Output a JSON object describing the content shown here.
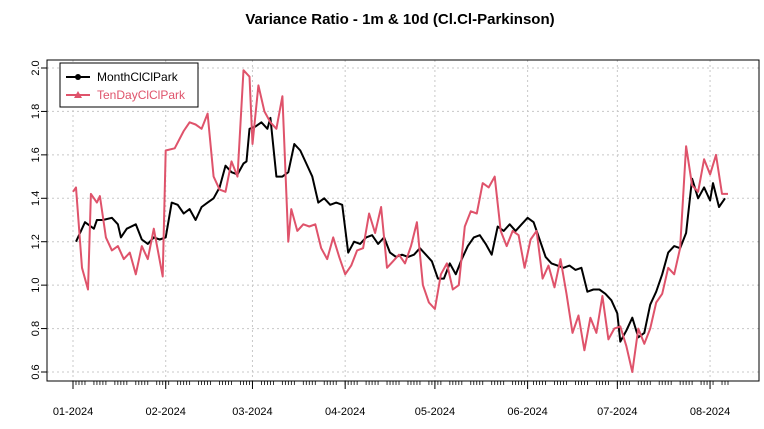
{
  "chart_data": {
    "type": "line",
    "title": "Variance Ratio - 1m & 10d (Cl.Cl-Parkinson)",
    "xlabel": "",
    "ylabel": "",
    "ylim": [
      0.6,
      2.0
    ],
    "y_ticks": [
      "0.6",
      "0.8",
      "1.0",
      "1.2",
      "1.4",
      "1.6",
      "1.8",
      "2.0"
    ],
    "x_tick_labels": [
      "01-2024",
      "02-2024",
      "03-2024",
      "04-2024",
      "05-2024",
      "06-2024",
      "07-2024",
      "08-2024"
    ],
    "grid": true,
    "legend_position": "top-left",
    "series": [
      {
        "name": "MonthClClPark",
        "color": "#000000",
        "points": [
          [
            "2024-01-02",
            1.2
          ],
          [
            "2024-01-04",
            1.26
          ],
          [
            "2024-01-05",
            1.29
          ],
          [
            "2024-01-08",
            1.26
          ],
          [
            "2024-01-09",
            1.3
          ],
          [
            "2024-01-11",
            1.3
          ],
          [
            "2024-01-14",
            1.31
          ],
          [
            "2024-01-16",
            1.28
          ],
          [
            "2024-01-17",
            1.22
          ],
          [
            "2024-01-19",
            1.26
          ],
          [
            "2024-01-22",
            1.28
          ],
          [
            "2024-01-24",
            1.21
          ],
          [
            "2024-01-26",
            1.19
          ],
          [
            "2024-01-28",
            1.22
          ],
          [
            "2024-01-30",
            1.21
          ],
          [
            "2024-02-01",
            1.22
          ],
          [
            "2024-02-03",
            1.38
          ],
          [
            "2024-02-05",
            1.37
          ],
          [
            "2024-02-07",
            1.33
          ],
          [
            "2024-02-09",
            1.35
          ],
          [
            "2024-02-11",
            1.3
          ],
          [
            "2024-02-13",
            1.36
          ],
          [
            "2024-02-15",
            1.38
          ],
          [
            "2024-02-17",
            1.4
          ],
          [
            "2024-02-19",
            1.45
          ],
          [
            "2024-02-21",
            1.55
          ],
          [
            "2024-02-23",
            1.52
          ],
          [
            "2024-02-25",
            1.51
          ],
          [
            "2024-02-27",
            1.56
          ],
          [
            "2024-02-28",
            1.57
          ],
          [
            "2024-02-29",
            1.72
          ],
          [
            "2024-03-02",
            1.73
          ],
          [
            "2024-03-04",
            1.75
          ],
          [
            "2024-03-06",
            1.72
          ],
          [
            "2024-03-07",
            1.77
          ],
          [
            "2024-03-09",
            1.5
          ],
          [
            "2024-03-11",
            1.5
          ],
          [
            "2024-03-13",
            1.52
          ],
          [
            "2024-03-15",
            1.65
          ],
          [
            "2024-03-17",
            1.62
          ],
          [
            "2024-03-19",
            1.56
          ],
          [
            "2024-03-21",
            1.5
          ],
          [
            "2024-03-23",
            1.38
          ],
          [
            "2024-03-25",
            1.4
          ],
          [
            "2024-03-27",
            1.37
          ],
          [
            "2024-03-29",
            1.38
          ],
          [
            "2024-03-31",
            1.37
          ],
          [
            "2024-04-02",
            1.15
          ],
          [
            "2024-04-04",
            1.2
          ],
          [
            "2024-04-06",
            1.19
          ],
          [
            "2024-04-08",
            1.22
          ],
          [
            "2024-04-10",
            1.23
          ],
          [
            "2024-04-12",
            1.19
          ],
          [
            "2024-04-14",
            1.22
          ],
          [
            "2024-04-16",
            1.15
          ],
          [
            "2024-04-18",
            1.13
          ],
          [
            "2024-04-20",
            1.14
          ],
          [
            "2024-04-22",
            1.13
          ],
          [
            "2024-04-24",
            1.14
          ],
          [
            "2024-04-26",
            1.17
          ],
          [
            "2024-04-28",
            1.14
          ],
          [
            "2024-04-30",
            1.11
          ],
          [
            "2024-05-02",
            1.03
          ],
          [
            "2024-05-04",
            1.03
          ],
          [
            "2024-05-06",
            1.1
          ],
          [
            "2024-05-08",
            1.05
          ],
          [
            "2024-05-10",
            1.12
          ],
          [
            "2024-05-12",
            1.18
          ],
          [
            "2024-05-14",
            1.22
          ],
          [
            "2024-05-16",
            1.23
          ],
          [
            "2024-05-18",
            1.19
          ],
          [
            "2024-05-20",
            1.14
          ],
          [
            "2024-05-22",
            1.27
          ],
          [
            "2024-05-24",
            1.25
          ],
          [
            "2024-05-26",
            1.28
          ],
          [
            "2024-05-28",
            1.25
          ],
          [
            "2024-05-30",
            1.28
          ],
          [
            "2024-06-01",
            1.31
          ],
          [
            "2024-06-03",
            1.29
          ],
          [
            "2024-06-05",
            1.21
          ],
          [
            "2024-06-07",
            1.13
          ],
          [
            "2024-06-09",
            1.1
          ],
          [
            "2024-06-11",
            1.09
          ],
          [
            "2024-06-13",
            1.08
          ],
          [
            "2024-06-15",
            1.09
          ],
          [
            "2024-06-17",
            1.07
          ],
          [
            "2024-06-19",
            1.08
          ],
          [
            "2024-06-21",
            0.97
          ],
          [
            "2024-06-23",
            0.98
          ],
          [
            "2024-06-25",
            0.98
          ],
          [
            "2024-06-27",
            0.96
          ],
          [
            "2024-06-29",
            0.93
          ],
          [
            "2024-07-01",
            0.87
          ],
          [
            "2024-07-02",
            0.74
          ],
          [
            "2024-07-04",
            0.79
          ],
          [
            "2024-07-06",
            0.85
          ],
          [
            "2024-07-08",
            0.76
          ],
          [
            "2024-07-10",
            0.78
          ],
          [
            "2024-07-12",
            0.91
          ],
          [
            "2024-07-14",
            0.97
          ],
          [
            "2024-07-16",
            1.05
          ],
          [
            "2024-07-18",
            1.15
          ],
          [
            "2024-07-20",
            1.18
          ],
          [
            "2024-07-22",
            1.17
          ],
          [
            "2024-07-24",
            1.24
          ],
          [
            "2024-07-26",
            1.49
          ],
          [
            "2024-07-28",
            1.4
          ],
          [
            "2024-07-30",
            1.45
          ],
          [
            "2024-08-01",
            1.39
          ],
          [
            "2024-08-02",
            1.47
          ],
          [
            "2024-08-04",
            1.36
          ],
          [
            "2024-08-06",
            1.4
          ]
        ]
      },
      {
        "name": "TenDayClClPark",
        "color": "#DF536B",
        "points": [
          [
            "2024-01-01",
            1.43
          ],
          [
            "2024-01-02",
            1.45
          ],
          [
            "2024-01-04",
            1.08
          ],
          [
            "2024-01-06",
            0.98
          ],
          [
            "2024-01-07",
            1.42
          ],
          [
            "2024-01-09",
            1.38
          ],
          [
            "2024-01-10",
            1.41
          ],
          [
            "2024-01-12",
            1.22
          ],
          [
            "2024-01-14",
            1.16
          ],
          [
            "2024-01-16",
            1.18
          ],
          [
            "2024-01-18",
            1.12
          ],
          [
            "2024-01-20",
            1.15
          ],
          [
            "2024-01-22",
            1.05
          ],
          [
            "2024-01-24",
            1.18
          ],
          [
            "2024-01-26",
            1.12
          ],
          [
            "2024-01-28",
            1.26
          ],
          [
            "2024-01-31",
            1.04
          ],
          [
            "2024-02-01",
            1.62
          ],
          [
            "2024-02-04",
            1.63
          ],
          [
            "2024-02-07",
            1.71
          ],
          [
            "2024-02-09",
            1.75
          ],
          [
            "2024-02-11",
            1.74
          ],
          [
            "2024-02-13",
            1.72
          ],
          [
            "2024-02-15",
            1.79
          ],
          [
            "2024-02-17",
            1.5
          ],
          [
            "2024-02-19",
            1.44
          ],
          [
            "2024-02-21",
            1.43
          ],
          [
            "2024-02-23",
            1.57
          ],
          [
            "2024-02-25",
            1.5
          ],
          [
            "2024-02-27",
            1.99
          ],
          [
            "2024-02-29",
            1.96
          ],
          [
            "2024-03-01",
            1.65
          ],
          [
            "2024-03-03",
            1.92
          ],
          [
            "2024-03-05",
            1.8
          ],
          [
            "2024-03-07",
            1.75
          ],
          [
            "2024-03-09",
            1.72
          ],
          [
            "2024-03-11",
            1.87
          ],
          [
            "2024-03-13",
            1.2
          ],
          [
            "2024-03-14",
            1.35
          ],
          [
            "2024-03-16",
            1.25
          ],
          [
            "2024-03-18",
            1.28
          ],
          [
            "2024-03-20",
            1.27
          ],
          [
            "2024-03-22",
            1.28
          ],
          [
            "2024-03-24",
            1.17
          ],
          [
            "2024-03-26",
            1.12
          ],
          [
            "2024-03-28",
            1.22
          ],
          [
            "2024-03-30",
            1.13
          ],
          [
            "2024-04-01",
            1.05
          ],
          [
            "2024-04-03",
            1.09
          ],
          [
            "2024-04-05",
            1.16
          ],
          [
            "2024-04-07",
            1.17
          ],
          [
            "2024-04-09",
            1.33
          ],
          [
            "2024-04-11",
            1.24
          ],
          [
            "2024-04-13",
            1.36
          ],
          [
            "2024-04-15",
            1.08
          ],
          [
            "2024-04-17",
            1.11
          ],
          [
            "2024-04-19",
            1.14
          ],
          [
            "2024-04-21",
            1.1
          ],
          [
            "2024-04-23",
            1.18
          ],
          [
            "2024-04-25",
            1.29
          ],
          [
            "2024-04-27",
            1.0
          ],
          [
            "2024-04-29",
            0.92
          ],
          [
            "2024-05-01",
            0.89
          ],
          [
            "2024-05-03",
            1.05
          ],
          [
            "2024-05-05",
            1.1
          ],
          [
            "2024-05-07",
            0.98
          ],
          [
            "2024-05-09",
            1.0
          ],
          [
            "2024-05-11",
            1.27
          ],
          [
            "2024-05-13",
            1.34
          ],
          [
            "2024-05-15",
            1.33
          ],
          [
            "2024-05-17",
            1.47
          ],
          [
            "2024-05-19",
            1.45
          ],
          [
            "2024-05-21",
            1.5
          ],
          [
            "2024-05-23",
            1.25
          ],
          [
            "2024-05-25",
            1.18
          ],
          [
            "2024-05-27",
            1.25
          ],
          [
            "2024-05-29",
            1.23
          ],
          [
            "2024-05-31",
            1.08
          ],
          [
            "2024-06-02",
            1.21
          ],
          [
            "2024-06-04",
            1.25
          ],
          [
            "2024-06-06",
            1.03
          ],
          [
            "2024-06-08",
            1.09
          ],
          [
            "2024-06-10",
            0.99
          ],
          [
            "2024-06-12",
            1.12
          ],
          [
            "2024-06-14",
            0.96
          ],
          [
            "2024-06-16",
            0.78
          ],
          [
            "2024-06-18",
            0.86
          ],
          [
            "2024-06-20",
            0.7
          ],
          [
            "2024-06-22",
            0.85
          ],
          [
            "2024-06-24",
            0.78
          ],
          [
            "2024-06-26",
            0.95
          ],
          [
            "2024-06-28",
            0.75
          ],
          [
            "2024-06-30",
            0.8
          ],
          [
            "2024-07-02",
            0.81
          ],
          [
            "2024-07-04",
            0.72
          ],
          [
            "2024-07-06",
            0.6
          ],
          [
            "2024-07-08",
            0.8
          ],
          [
            "2024-07-10",
            0.73
          ],
          [
            "2024-07-12",
            0.8
          ],
          [
            "2024-07-14",
            0.92
          ],
          [
            "2024-07-16",
            0.96
          ],
          [
            "2024-07-18",
            1.08
          ],
          [
            "2024-07-20",
            1.05
          ],
          [
            "2024-07-22",
            1.17
          ],
          [
            "2024-07-24",
            1.64
          ],
          [
            "2024-07-26",
            1.46
          ],
          [
            "2024-07-28",
            1.43
          ],
          [
            "2024-07-30",
            1.58
          ],
          [
            "2024-08-01",
            1.51
          ],
          [
            "2024-08-03",
            1.6
          ],
          [
            "2024-08-05",
            1.42
          ],
          [
            "2024-08-07",
            1.42
          ]
        ]
      }
    ]
  }
}
